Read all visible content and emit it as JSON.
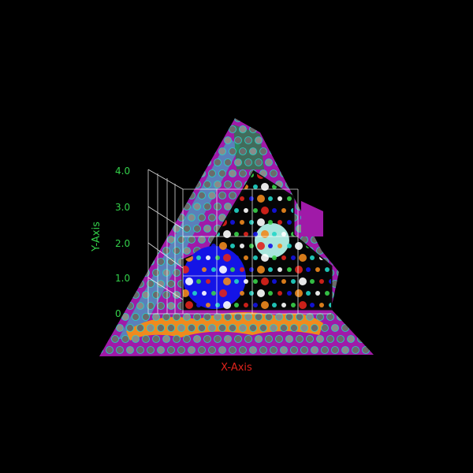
{
  "viewer": {
    "x_axis_label": "X-Axis",
    "y_axis_label": "Y-Axis",
    "y_ticks": [
      "4.0",
      "3.0",
      "2.0",
      "1.0",
      "0"
    ]
  },
  "colors": {
    "background": "#000000",
    "surface_purple": "#a01aa8",
    "cyan": "#22d6c8",
    "blue": "#1414e6",
    "orange": "#f08a1e",
    "grid": "#ffffff",
    "tick_text": "#33d14a",
    "x_label": "#e0231c",
    "y_label": "#33d14a"
  }
}
